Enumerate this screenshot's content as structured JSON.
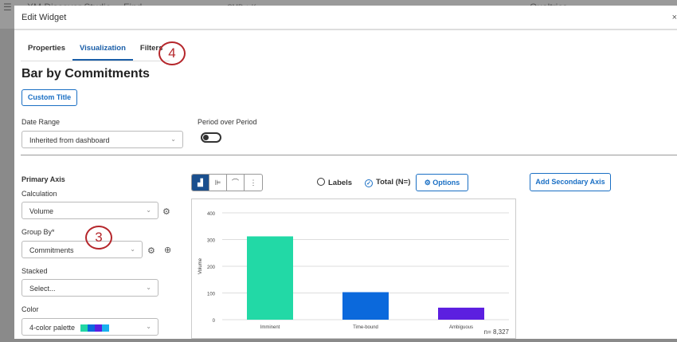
{
  "appbar": {
    "app_name": "XM Discover Studio",
    "find": "Find",
    "shortcut": "CMD + K",
    "org": "Qualtrics"
  },
  "modal": {
    "title": "Edit Widget",
    "close": "×"
  },
  "tabs": [
    {
      "label": "Properties"
    },
    {
      "label": "Visualization",
      "active": true
    },
    {
      "label": "Filters"
    }
  ],
  "callouts": {
    "tabs": "4",
    "group_by": "3"
  },
  "widget_title": "Bar by Commitments",
  "custom_title_button": "Custom Title",
  "date_range": {
    "label": "Date Range",
    "value": "Inherited from dashboard"
  },
  "period_over_period": {
    "label": "Period over Period",
    "enabled": false
  },
  "primary_axis": {
    "heading": "Primary Axis",
    "calculation": {
      "label": "Calculation",
      "value": "Volume"
    },
    "group_by": {
      "label": "Group By*",
      "value": "Commitments"
    },
    "stacked": {
      "label": "Stacked",
      "value": "Select..."
    },
    "color": {
      "label": "Color",
      "value": "4-color palette",
      "swatches": [
        "#22d6a5",
        "#0a68de",
        "#5b1fe0",
        "#1ab0ee"
      ]
    }
  },
  "toolbar": {
    "labels": "Labels",
    "labels_checked": false,
    "total": "Total (N=)",
    "total_checked": true,
    "options": "Options",
    "add_secondary": "Add Secondary Axis"
  },
  "chart_data": {
    "type": "bar",
    "categories": [
      "Imminent",
      "Time-bound",
      "Ambiguous"
    ],
    "values": [
      312,
      103,
      45
    ],
    "colors": [
      "#22d9a6",
      "#0b69dc",
      "#5c1fe0"
    ],
    "ylabel": "Volume",
    "ylim": [
      0,
      400
    ],
    "yticks": [
      "0",
      "100",
      "200",
      "300",
      "400"
    ],
    "grid": true,
    "total_label": "n= 8,327"
  }
}
